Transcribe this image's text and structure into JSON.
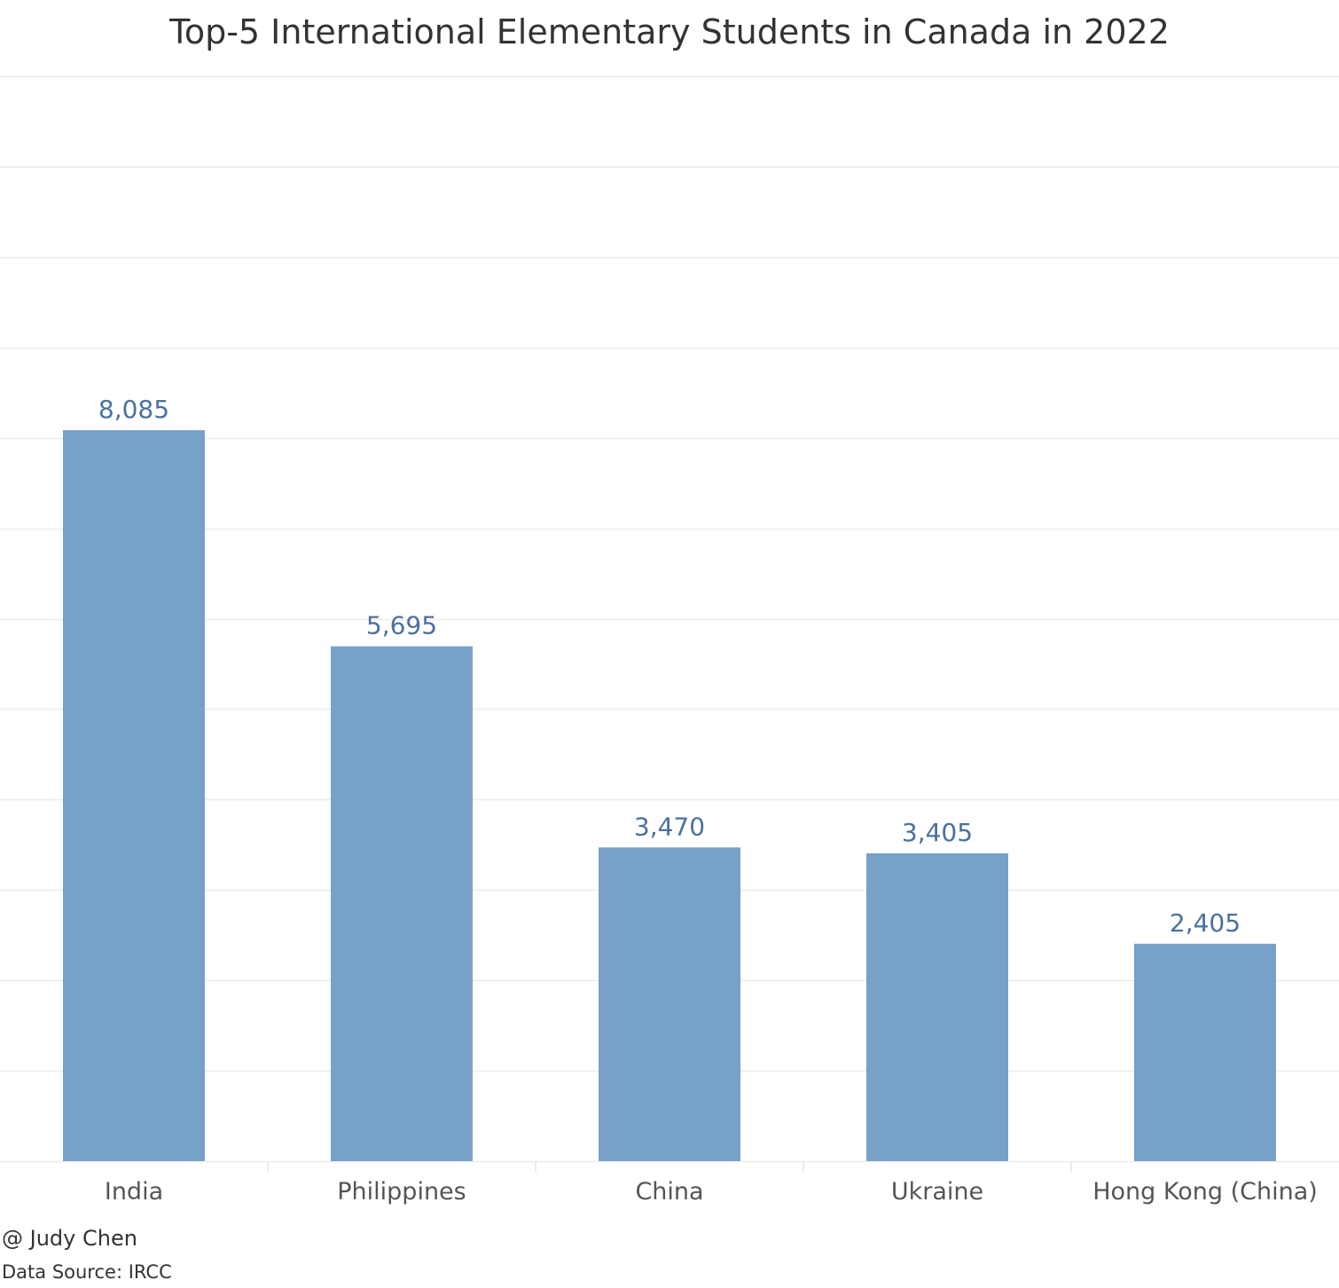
{
  "chart_data": {
    "type": "bar",
    "title": "Top-5 International Elementary Students in Canada in 2022",
    "xlabel": "",
    "ylabel": "",
    "categories": [
      "India",
      "Philippines",
      "China",
      "Ukraine",
      "Hong Kong (China)"
    ],
    "values": [
      8085,
      5695,
      3470,
      3405,
      2405
    ],
    "value_labels": [
      "8,085",
      "5,695",
      "3,470",
      "3,405",
      "2,405"
    ],
    "ylim": [
      0,
      12000
    ],
    "grid": true,
    "y_tick_labels_shown": false,
    "bar_color": "#78a1c7",
    "value_label_color": "#4a71a0",
    "gridline_color": "#ececec"
  },
  "footer": {
    "credit": "@ Judy Chen",
    "source": "Data Source: IRCC"
  }
}
